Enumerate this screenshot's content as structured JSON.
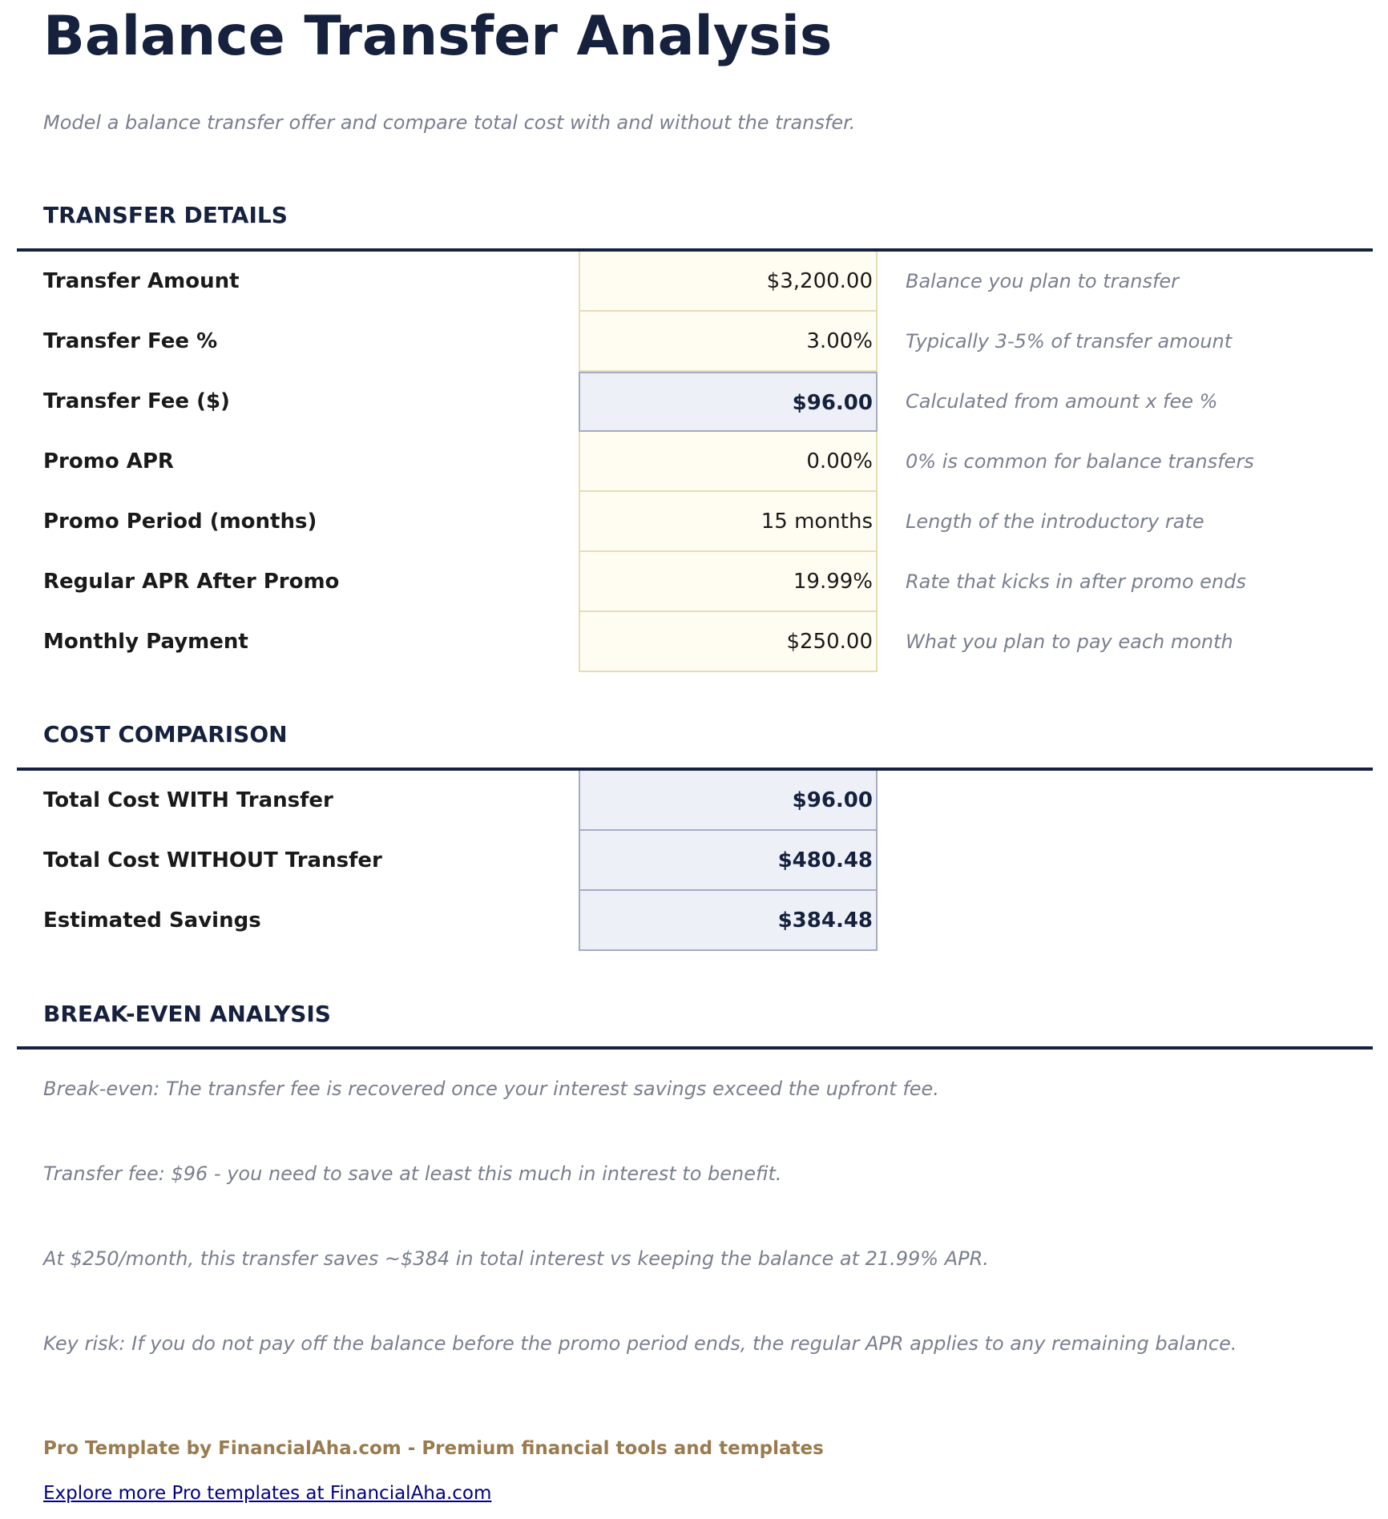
{
  "title": "Balance Transfer Analysis",
  "subtitle": "Model a balance transfer offer and compare total cost with and without the transfer.",
  "transfer_details": {
    "heading": "TRANSFER DETAILS",
    "rows": [
      {
        "label": "Transfer Amount",
        "value": "$3,200.00",
        "note": "Balance you plan to transfer"
      },
      {
        "label": "Transfer Fee %",
        "value": "3.00%",
        "note": "Typically 3-5% of transfer amount"
      },
      {
        "label": "Transfer Fee ($)",
        "value": "$96.00",
        "note": "Calculated from amount x fee %"
      },
      {
        "label": "Promo APR",
        "value": "0.00%",
        "note": "0% is common for balance transfers"
      },
      {
        "label": "Promo Period (months)",
        "value": "15 months",
        "note": "Length of the introductory rate"
      },
      {
        "label": "Regular APR After Promo",
        "value": "19.99%",
        "note": "Rate that kicks in after promo ends"
      },
      {
        "label": "Monthly Payment",
        "value": "$250.00",
        "note": "What you plan to pay each month"
      }
    ]
  },
  "cost_comparison": {
    "heading": "COST COMPARISON",
    "rows": [
      {
        "label": "Total Cost WITH Transfer",
        "value": "$96.00"
      },
      {
        "label": "Total Cost WITHOUT Transfer",
        "value": "$480.48"
      },
      {
        "label": "Estimated Savings",
        "value": "$384.48"
      }
    ]
  },
  "break_even": {
    "heading": "BREAK-EVEN ANALYSIS",
    "paragraphs": [
      "Break-even: The transfer fee is recovered once your interest savings exceed the upfront fee.",
      "Transfer fee: $96 - you need to save at least this much in interest to benefit.",
      "At $250/month, this transfer saves ~$384 in total interest vs keeping the balance at 21.99% APR.",
      "Key risk: If you do not pay off the balance before the promo period ends, the regular APR applies to any remaining balance."
    ]
  },
  "footer": {
    "text": "Pro Template by FinancialAha.com - Premium financial tools and templates",
    "link": "Explore more Pro templates at FinancialAha.com"
  },
  "colors": {
    "navy": "#16213e",
    "input_bg": "#fffcf2",
    "calc_bg": "#edf0f7",
    "gold": "#9a7b4f",
    "link": "#000080"
  }
}
